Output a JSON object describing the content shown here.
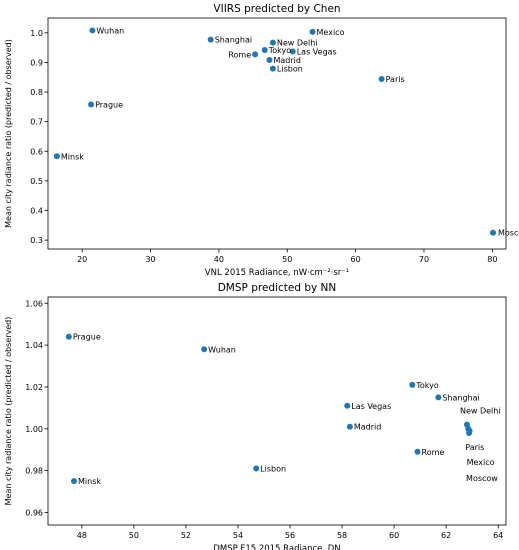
{
  "chart_data": [
    {
      "type": "scatter",
      "title": "VIIRS predicted by Chen",
      "xlabel": "VNL 2015 Radiance, nW·cm⁻²·sr⁻¹",
      "ylabel": "Mean city radiance ratio (predicted / observed)",
      "xlim": [
        15,
        82
      ],
      "ylim": [
        0.27,
        1.05
      ],
      "xticks": [
        20,
        30,
        40,
        50,
        60,
        70,
        80
      ],
      "yticks": [
        0.3,
        0.4,
        0.5,
        0.6,
        0.7,
        0.8,
        0.9,
        1.0
      ],
      "xtick_labels": [
        "20",
        "30",
        "40",
        "50",
        "60",
        "70",
        "80"
      ],
      "ytick_labels": [
        "0.3",
        "0.4",
        "0.5",
        "0.6",
        "0.7",
        "0.8",
        "0.9",
        "1.0"
      ],
      "color": "#1f77b4",
      "grid": false,
      "points": [
        {
          "label": "Wuhan",
          "x": 21.5,
          "y": 1.008
        },
        {
          "label": "Shanghai",
          "x": 38.8,
          "y": 0.977
        },
        {
          "label": "Mexico",
          "x": 53.7,
          "y": 1.003
        },
        {
          "label": "New Delhi",
          "x": 47.9,
          "y": 0.967
        },
        {
          "label": "Las Vegas",
          "x": 50.8,
          "y": 0.937
        },
        {
          "label": "Tokyo",
          "x": 46.7,
          "y": 0.942
        },
        {
          "label": "Rome",
          "x": 45.3,
          "y": 0.927
        },
        {
          "label": "Madrid",
          "x": 47.4,
          "y": 0.908
        },
        {
          "label": "Lisbon",
          "x": 47.9,
          "y": 0.879
        },
        {
          "label": "Paris",
          "x": 63.8,
          "y": 0.844
        },
        {
          "label": "Prague",
          "x": 21.3,
          "y": 0.758
        },
        {
          "label": "Minsk",
          "x": 16.3,
          "y": 0.583
        },
        {
          "label": "Moscow",
          "x": 80.1,
          "y": 0.325
        }
      ]
    },
    {
      "type": "scatter",
      "title": "DMSP predicted by NN",
      "xlabel": "DMSP F15 2015 Radiance, DN",
      "ylabel": "Mean city radiance ratio (predicted / observed)",
      "xlim": [
        46.7,
        64.3
      ],
      "ylim": [
        0.954,
        1.063
      ],
      "xticks": [
        48,
        50,
        52,
        54,
        56,
        58,
        60,
        62,
        64
      ],
      "yticks": [
        0.96,
        0.98,
        1.0,
        1.02,
        1.04,
        1.06
      ],
      "xtick_labels": [
        "48",
        "50",
        "52",
        "54",
        "56",
        "58",
        "60",
        "62",
        "64"
      ],
      "ytick_labels": [
        "0.96",
        "0.98",
        "1.00",
        "1.02",
        "1.04",
        "1.06"
      ],
      "color": "#1f77b4",
      "grid": false,
      "points": [
        {
          "label": "Prague",
          "x": 47.5,
          "y": 1.044
        },
        {
          "label": "Wuhan",
          "x": 52.7,
          "y": 1.038
        },
        {
          "label": "Tokyo",
          "x": 60.7,
          "y": 1.021
        },
        {
          "label": "Shanghai",
          "x": 61.7,
          "y": 1.015
        },
        {
          "label": "Las Vegas",
          "x": 58.2,
          "y": 1.011
        },
        {
          "label": "Madrid",
          "x": 58.3,
          "y": 1.001
        },
        {
          "label": "Rome",
          "x": 60.9,
          "y": 0.989
        },
        {
          "label": "Lisbon",
          "x": 54.7,
          "y": 0.981
        },
        {
          "label": "Minsk",
          "x": 47.7,
          "y": 0.975
        },
        {
          "label": "New Delhi",
          "x": 62.8,
          "y": 1.002
        },
        {
          "label": "Paris",
          "x": 62.85,
          "y": 1.0
        },
        {
          "label": "Mexico",
          "x": 62.9,
          "y": 0.999
        },
        {
          "label": "Moscow",
          "x": 62.88,
          "y": 0.998
        }
      ]
    }
  ]
}
